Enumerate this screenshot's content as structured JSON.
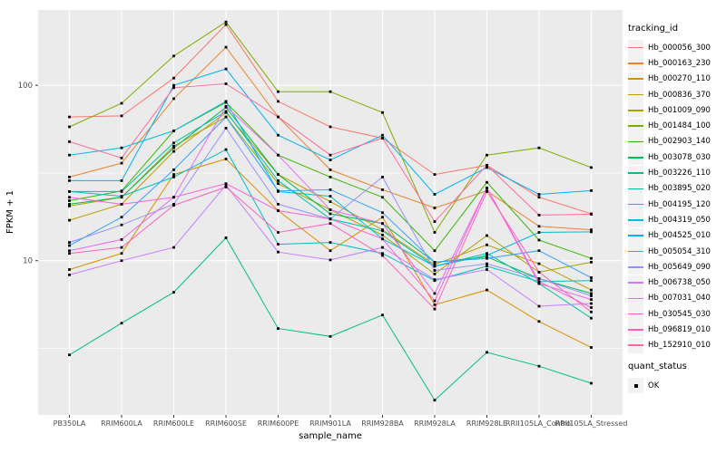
{
  "chart_data": {
    "type": "line",
    "title": "",
    "xlabel": "sample_name",
    "ylabel": "FPKM + 1",
    "y_scale": "log10",
    "y_ticks": [
      10,
      100
    ],
    "y_minor_ticks": [
      3.16,
      31.6
    ],
    "ylim": [
      1.3,
      270
    ],
    "grid": "white major and minor on grey panel",
    "legend_position": "right",
    "legend_title": "tracking_id",
    "panel_bg": "#EBEBEB",
    "grid_color": "#FFFFFF",
    "tick_label_color": "#4D4D4D",
    "point_color": "#000000",
    "point_shape": "filled-square",
    "categories": [
      "PB350LA",
      "RRIM600LA",
      "RRIM600LE",
      "RRIM600SE",
      "RRIM600PE",
      "RRIM901LA",
      "RRIM928BA",
      "RRIM928LA",
      "RRIM928LE",
      "RRII105LA_Control",
      "RRII105LA_Stressed"
    ],
    "series": [
      {
        "name": "Hb_000056_300",
        "color": "#F8766D",
        "values": [
          66,
          67,
          110,
          222,
          81,
          58,
          50,
          31,
          35,
          23,
          18.5
        ]
      },
      {
        "name": "Hb_000163_230",
        "color": "#EA8331",
        "values": [
          30,
          36,
          84,
          165,
          66,
          33,
          25.4,
          20,
          25,
          15.7,
          15
        ]
      },
      {
        "name": "Hb_000270_110",
        "color": "#D89000",
        "values": [
          8.9,
          11,
          31,
          38,
          19.3,
          11.4,
          17.7,
          5.6,
          6.8,
          4.5,
          3.2
        ]
      },
      {
        "name": "Hb_000836_370",
        "color": "#C09B00",
        "values": [
          17,
          21,
          42,
          70,
          31,
          21.7,
          15,
          9.5,
          12.3,
          9.6,
          6.8
        ]
      },
      {
        "name": "Hb_001009_090",
        "color": "#A3A500",
        "values": [
          20.5,
          23,
          45,
          66,
          27.5,
          19.5,
          14,
          8.4,
          13.9,
          8.6,
          9.8
        ]
      },
      {
        "name": "Hb_001484_100",
        "color": "#7CAE00",
        "values": [
          58,
          79,
          147,
          230,
          92,
          92,
          70,
          14.5,
          40,
          44,
          34
        ]
      },
      {
        "name": "Hb_002903_140",
        "color": "#39B600",
        "values": [
          22,
          25,
          55,
          80,
          40,
          30,
          23,
          11.4,
          28,
          13.1,
          10.3
        ]
      },
      {
        "name": "Hb_003078_030",
        "color": "#00BB4E",
        "values": [
          21,
          23,
          44,
          75,
          31,
          18.5,
          16.3,
          9.8,
          10.5,
          7.9,
          6.5
        ]
      },
      {
        "name": "Hb_003226_110",
        "color": "#00BF7D",
        "values": [
          2.9,
          4.4,
          6.6,
          13.5,
          4.1,
          3.7,
          4.9,
          1.6,
          3.0,
          2.5,
          2.0
        ]
      },
      {
        "name": "Hb_003895_020",
        "color": "#00C1A3",
        "values": [
          24.8,
          24.8,
          47,
          71,
          28.6,
          17.3,
          14.8,
          9.3,
          11,
          7.4,
          4.7
        ]
      },
      {
        "name": "Hb_004195_120",
        "color": "#00BFC4",
        "values": [
          24.8,
          23.3,
          30,
          43,
          12.4,
          12.7,
          11,
          7.7,
          9.3,
          7.6,
          7.7
        ]
      },
      {
        "name": "Hb_004319_050",
        "color": "#00BAE0",
        "values": [
          40,
          44,
          55,
          81,
          24.8,
          23.3,
          13.3,
          9.3,
          10.7,
          14.5,
          14.6
        ]
      },
      {
        "name": "Hb_004525_010",
        "color": "#00B0F6",
        "values": [
          28.6,
          28.6,
          100,
          124,
          52,
          37.5,
          52,
          23.9,
          34,
          23.9,
          25.1
        ]
      },
      {
        "name": "Hb_005054_310",
        "color": "#35A2FF",
        "values": [
          12.2,
          17.7,
          33,
          66,
          25,
          25.4,
          18.8,
          9.8,
          10.3,
          11.4,
          8.0
        ]
      },
      {
        "name": "Hb_005649_090",
        "color": "#9590FF",
        "values": [
          12.7,
          16,
          21,
          57,
          21,
          17.3,
          30,
          8.8,
          9.6,
          7.9,
          6.3
        ]
      },
      {
        "name": "Hb_006738_050",
        "color": "#C77CFF",
        "values": [
          8.3,
          10,
          11.9,
          27,
          11.2,
          10.1,
          11.9,
          7.8,
          8.9,
          5.5,
          5.7
        ]
      },
      {
        "name": "Hb_007031_040",
        "color": "#E76BF3",
        "values": [
          11.4,
          13.2,
          23,
          76,
          40,
          19.5,
          16.3,
          6.5,
          26,
          7.4,
          6.0
        ]
      },
      {
        "name": "Hb_030545_030",
        "color": "#FA62DB",
        "values": [
          23,
          21,
          23,
          27.5,
          19.3,
          17.3,
          13.3,
          5.9,
          26,
          7.6,
          5.4
        ]
      },
      {
        "name": "Hb_096819_010",
        "color": "#FF62BC",
        "values": [
          11,
          11.9,
          20.7,
          26.3,
          14.5,
          16.3,
          10.7,
          5.3,
          24.8,
          8.6,
          5.1
        ]
      },
      {
        "name": "Hb_152910_010",
        "color": "#FF6A98",
        "values": [
          47.7,
          38.5,
          97,
          102,
          66,
          40,
          50,
          16.7,
          35,
          18.2,
          18.4
        ]
      }
    ],
    "quant_legend": {
      "title": "quant_status",
      "items": [
        {
          "label": "OK",
          "symbol": "black-square"
        }
      ]
    }
  }
}
